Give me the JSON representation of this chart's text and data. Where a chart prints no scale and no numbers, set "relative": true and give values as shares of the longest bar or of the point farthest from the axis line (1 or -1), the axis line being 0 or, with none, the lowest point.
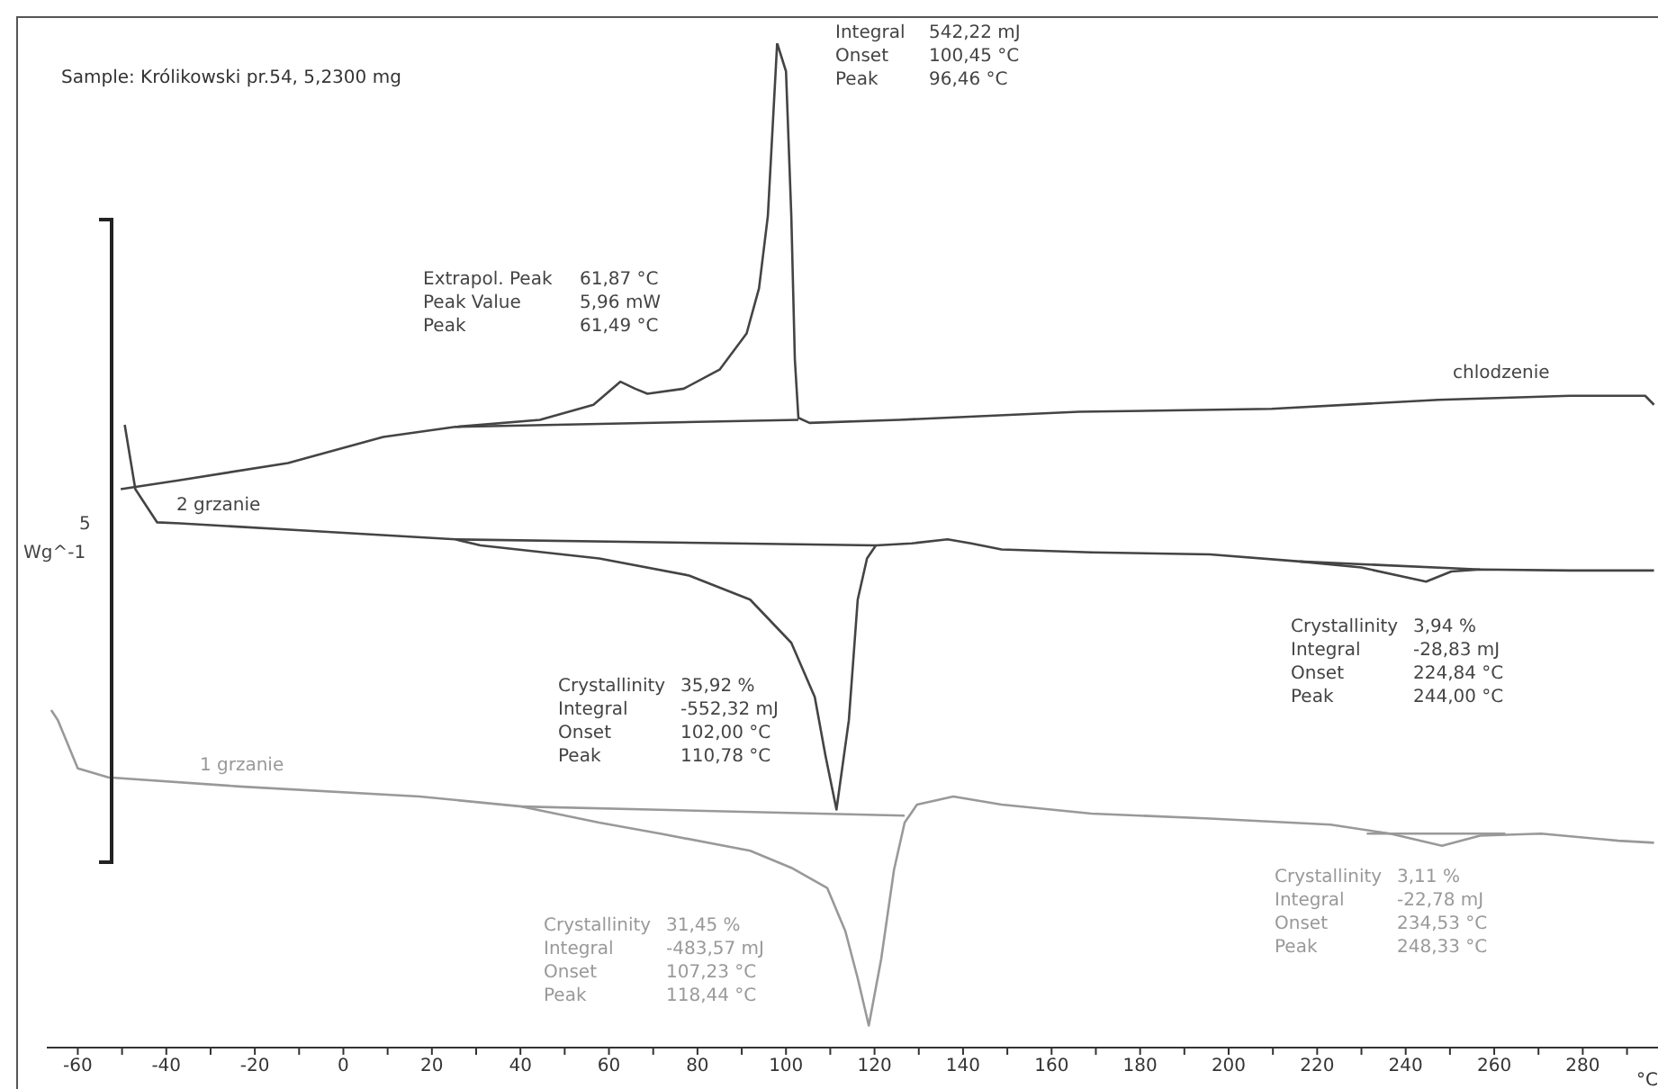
{
  "chart_data": {
    "type": "line",
    "relative": true,
    "title": "Sample: Królikowski pr.54, 5,2300 mg",
    "xlabel": "°C",
    "xlim": [
      -67,
      297
    ],
    "xticks": [
      -60,
      {
        "value": -50,
        "label": null
      },
      -40,
      {
        "value": -30,
        "label": null
      },
      -20,
      {
        "value": -10,
        "label": null
      },
      0,
      {
        "value": 10,
        "label": null
      },
      20,
      {
        "value": 30,
        "label": null
      },
      40,
      {
        "value": 50,
        "label": null
      },
      60,
      {
        "value": 70,
        "label": null
      },
      80,
      {
        "value": 90,
        "label": null
      },
      100,
      {
        "value": 110,
        "label": null
      },
      120,
      {
        "value": 130,
        "label": null
      },
      140,
      {
        "value": 150,
        "label": null
      },
      160,
      {
        "value": 170,
        "label": null
      },
      180,
      {
        "value": 190,
        "label": null
      },
      200,
      {
        "value": 210,
        "label": null
      },
      220,
      {
        "value": 230,
        "label": null
      },
      240,
      {
        "value": 250,
        "label": null
      },
      260,
      {
        "value": 270,
        "label": null
      },
      280,
      {
        "value": 290,
        "label": null
      }
    ],
    "series": [
      {
        "name": "chlodzenie",
        "color": "#444444",
        "x": [
          -50.3,
          -36.9,
          -12.5,
          9.0,
          25.3,
          44.4,
          56.5,
          62.6,
          65.9,
          68.7,
          76.9,
          85.0,
          91.1,
          93.9,
          95.9,
          98.0,
          100.0,
          101.2,
          102.0,
          102.8,
          105.3,
          125.6,
          166.2,
          209.7,
          247.4,
          277.1,
          294.1,
          296.1
        ],
        "values": [
          0.556,
          0.565,
          0.582,
          0.608,
          0.618,
          0.625,
          0.64,
          0.663,
          0.656,
          0.651,
          0.656,
          0.675,
          0.711,
          0.756,
          0.828,
          1.0,
          0.972,
          0.828,
          0.685,
          0.627,
          0.622,
          0.625,
          0.633,
          0.636,
          0.645,
          0.649,
          0.649,
          0.64
        ]
      },
      {
        "name": "2 grzanie",
        "color": "#444444",
        "x": [
          -49.4,
          -47.0,
          -42.1,
          -36.9,
          -9.6,
          25.3,
          31.0,
          57.8,
          78.1,
          91.9,
          101.2,
          106.5,
          108.9,
          111.4,
          114.2,
          116.2,
          118.3,
          120.3,
          128.4,
          136.5,
          141.8,
          148.7,
          169.0,
          195.8,
          216.1,
          230.0,
          244.6,
          250.3,
          256.8,
          277.1,
          296.1
        ],
        "values": [
          0.62,
          0.556,
          0.523,
          0.522,
          0.515,
          0.506,
          0.5,
          0.487,
          0.47,
          0.446,
          0.403,
          0.349,
          0.291,
          0.237,
          0.326,
          0.446,
          0.487,
          0.5,
          0.502,
          0.506,
          0.502,
          0.496,
          0.493,
          0.491,
          0.484,
          0.478,
          0.464,
          0.474,
          0.476,
          0.475,
          0.475
        ]
      },
      {
        "name": "1 grzanie",
        "color": "#999999",
        "x": [
          -66.0,
          -64.5,
          -60.0,
          -53.1,
          -23.5,
          17.2,
          40.3,
          57.8,
          71.6,
          91.9,
          101.2,
          109.3,
          113.4,
          116.2,
          118.7,
          121.5,
          124.4,
          126.8,
          129.6,
          137.8,
          148.7,
          169.0,
          195.8,
          223.0,
          236.5,
          248.2,
          256.8,
          270.6,
          288.0,
          296.1
        ],
        "values": [
          0.336,
          0.326,
          0.278,
          0.269,
          0.26,
          0.25,
          0.24,
          0.224,
          0.213,
          0.196,
          0.179,
          0.159,
          0.116,
          0.069,
          0.022,
          0.088,
          0.177,
          0.224,
          0.242,
          0.25,
          0.242,
          0.233,
          0.228,
          0.222,
          0.213,
          0.201,
          0.211,
          0.213,
          0.206,
          0.204
        ]
      },
      {
        "color": "#444444",
        "x": [
          25.3,
          102.8
        ],
        "values": [
          0.618,
          0.625
        ]
      },
      {
        "color": "#444444",
        "x": [
          25.3,
          120.3
        ],
        "values": [
          0.506,
          0.5
        ]
      },
      {
        "color": "#444444",
        "x": [
          216.1,
          256.8
        ],
        "values": [
          0.484,
          0.476
        ]
      },
      {
        "color": "#999999",
        "x": [
          40.3,
          126.8
        ],
        "values": [
          0.24,
          0.231
        ]
      },
      {
        "color": "#999999",
        "x": [
          231.2,
          262.5
        ],
        "values": [
          0.213,
          0.213
        ]
      }
    ],
    "annotations": [
      "Integral\t542,22 mJ\nOnset\t100,45 °C\nPeak\t96,46 °C",
      "Extrapol. Peak\t61,87 °C\nPeak Value\t5,96 mW\nPeak\t61,49 °C",
      "Crystallinity\t35,92 %\nIntegral\t-552,32 mJ\nOnset\t102,00 °C\nPeak\t110,78 °C",
      "Crystallinity\t3,94 %\nIntegral\t-28,83 mJ\nOnset\t224,84 °C\nPeak\t244,00 °C",
      "Crystallinity\t31,45 %\nIntegral\t-483,57 mJ\nOnset\t107,23 °C\nPeak\t118,44 °C",
      "Crystallinity\t3,11 %\nIntegral\t-22,78 mJ\nOnset\t234,53 °C\nPeak\t248,33 °C",
      "5",
      "Wg^-1"
    ]
  }
}
